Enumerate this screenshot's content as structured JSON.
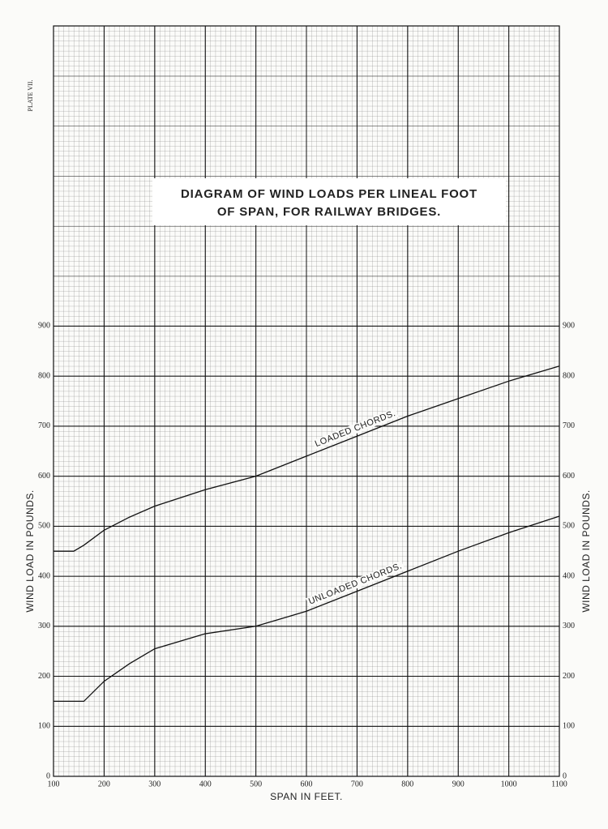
{
  "chart_data": {
    "type": "line",
    "title_lines": [
      "DIAGRAM OF WIND LOADS PER LINEAL FOOT",
      "OF SPAN, FOR RAILWAY BRIDGES."
    ],
    "plate": "PLATE VII.",
    "x_label": "SPAN IN FEET.",
    "y_label": "WIND LOAD IN POUNDS.",
    "x": [
      100,
      140,
      160,
      200,
      250,
      300,
      400,
      500,
      600,
      700,
      800,
      900,
      1000,
      1100
    ],
    "series": [
      {
        "name": "LOADED CHORDS.",
        "color": "#111111",
        "values": [
          450,
          450,
          462,
          492,
          518,
          540,
          573,
          600,
          640,
          680,
          720,
          755,
          790,
          820
        ]
      },
      {
        "name": "UNLOADED CHORDS.",
        "color": "#111111",
        "values": [
          150,
          150,
          150,
          190,
          225,
          255,
          285,
          300,
          330,
          370,
          410,
          450,
          487,
          520
        ]
      }
    ],
    "xlim": [
      100,
      1100
    ],
    "ylim": [
      0,
      1500
    ],
    "xticks": [
      100,
      200,
      300,
      400,
      500,
      600,
      700,
      800,
      900,
      1000,
      1100
    ],
    "yticks": [
      0,
      100,
      200,
      300,
      400,
      500,
      600,
      700,
      800,
      900
    ],
    "grid": true
  }
}
